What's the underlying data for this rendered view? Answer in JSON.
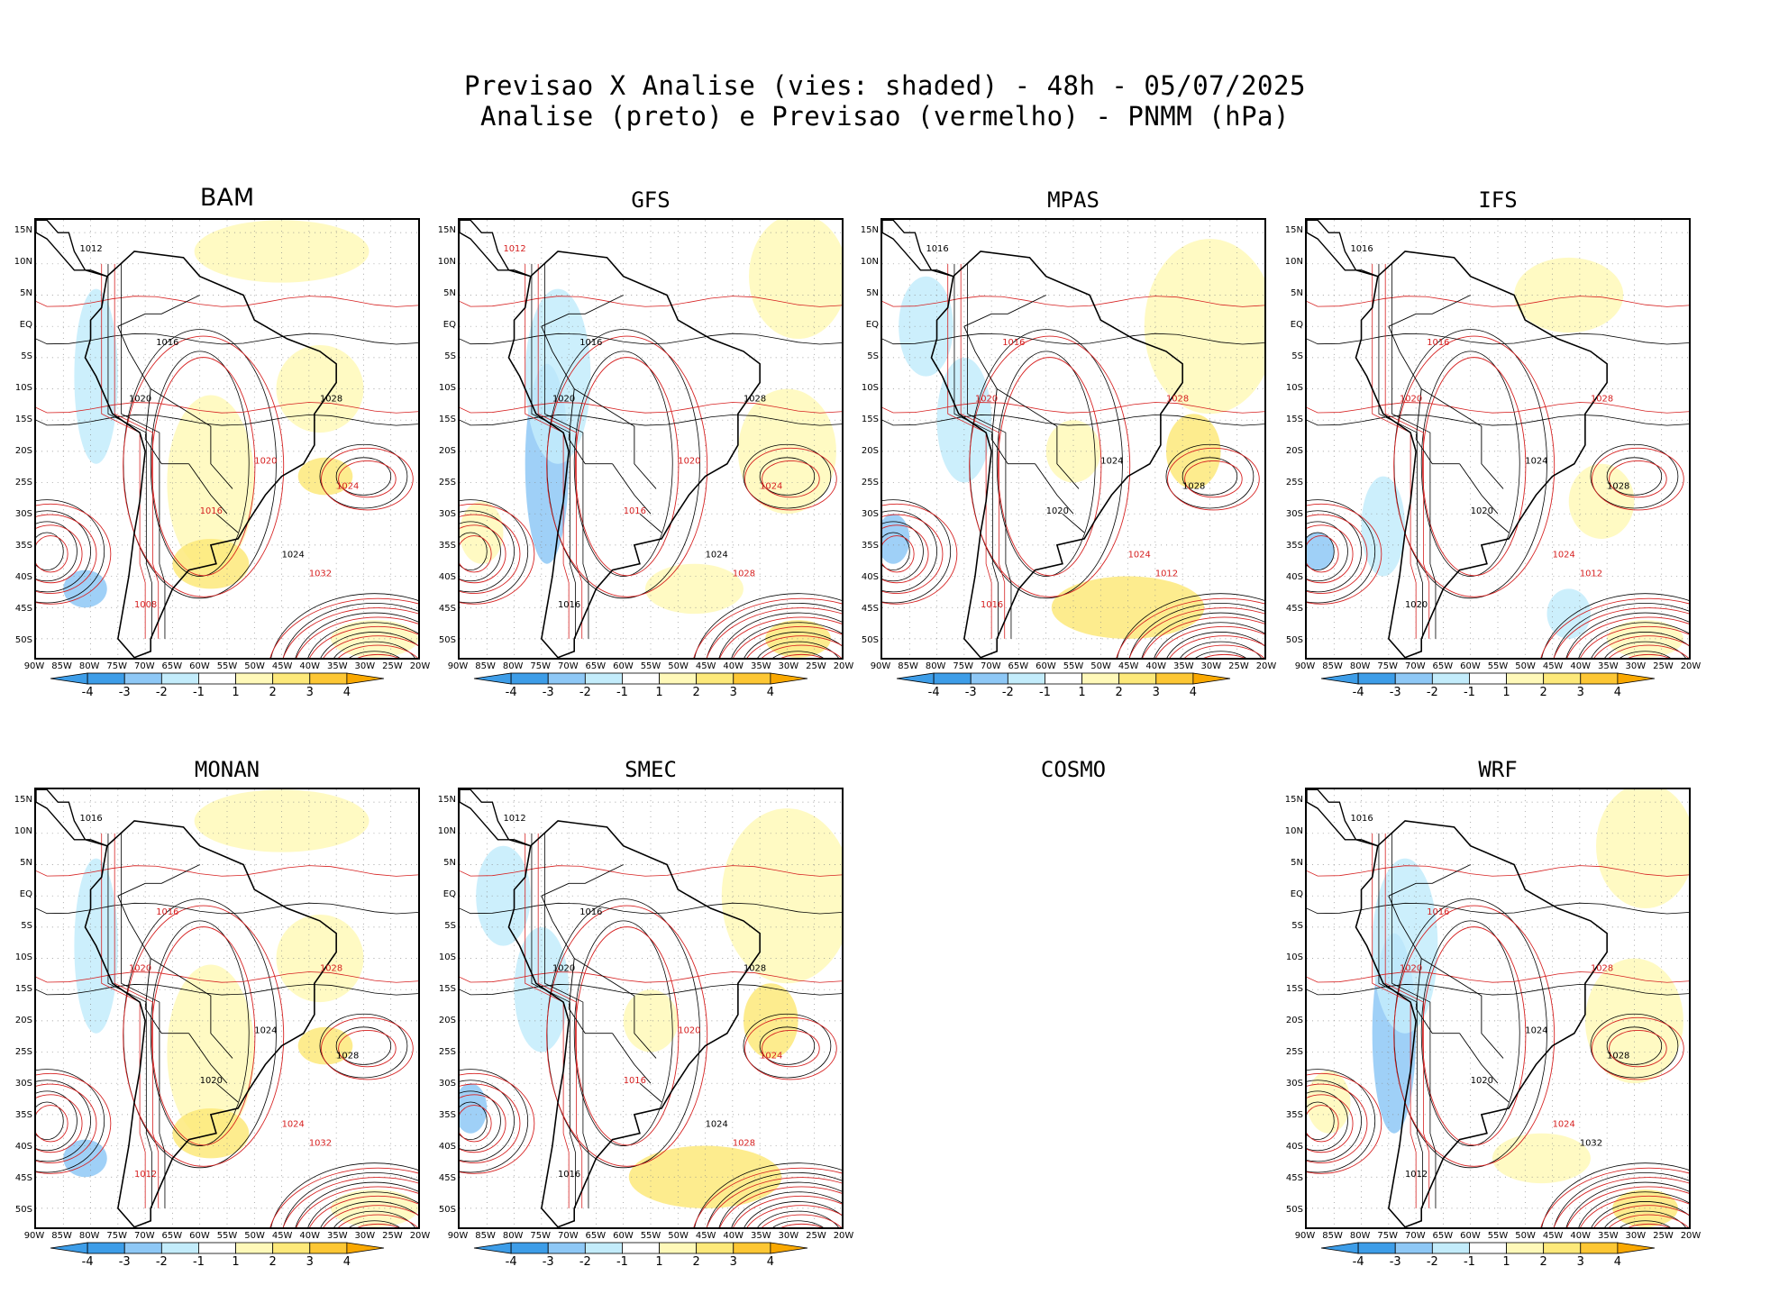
{
  "header": {
    "title_line1": "Previsao X Analise (vies: shaded) - 48h - 05/07/2025",
    "title_line2": "Analise (preto) e Previsao (vermelho) - PNMM (hPa)"
  },
  "lat_labels": [
    "15N",
    "10N",
    "5N",
    "EQ",
    "5S",
    "10S",
    "15S",
    "20S",
    "25S",
    "30S",
    "35S",
    "40S",
    "45S",
    "50S"
  ],
  "lon_labels": [
    "90W",
    "85W",
    "80W",
    "75W",
    "70W",
    "65W",
    "60W",
    "55W",
    "50W",
    "45W",
    "40W",
    "35W",
    "30W",
    "25W",
    "20W"
  ],
  "colorbar": {
    "labels": [
      "-4",
      "-3",
      "-2",
      "-1",
      "1",
      "2",
      "3",
      "4"
    ],
    "colors": [
      "#3d9de8",
      "#8ec8f6",
      "#c3ecfb",
      "#ffffff",
      "#fff9b9",
      "#fde97a",
      "#fdc734"
    ],
    "end_left": "#3d9de8",
    "end_right": "#f9a800"
  },
  "panels": [
    {
      "id": "bam",
      "name": "BAM",
      "has_map": true,
      "bias": "warm",
      "labels": [
        {
          "t": "1012",
          "c": "k"
        },
        {
          "t": "1016",
          "c": "k"
        },
        {
          "t": "1016",
          "c": "r"
        },
        {
          "t": "1020",
          "c": "k"
        },
        {
          "t": "1020",
          "c": "r"
        },
        {
          "t": "1024",
          "c": "k"
        },
        {
          "t": "1024",
          "c": "r"
        },
        {
          "t": "1028",
          "c": "k"
        },
        {
          "t": "1032",
          "c": "r"
        },
        {
          "t": "1008",
          "c": "r"
        }
      ]
    },
    {
      "id": "gfs",
      "name": "GFS",
      "has_map": true,
      "bias": "cool",
      "labels": [
        {
          "t": "1012",
          "c": "r"
        },
        {
          "t": "1016",
          "c": "k"
        },
        {
          "t": "1016",
          "c": "r"
        },
        {
          "t": "1020",
          "c": "k"
        },
        {
          "t": "1020",
          "c": "r"
        },
        {
          "t": "1024",
          "c": "k"
        },
        {
          "t": "1024",
          "c": "r"
        },
        {
          "t": "1028",
          "c": "k"
        },
        {
          "t": "1028",
          "c": "r"
        },
        {
          "t": "1016",
          "c": "k"
        }
      ]
    },
    {
      "id": "mpas",
      "name": "MPAS",
      "has_map": true,
      "bias": "mixed",
      "labels": [
        {
          "t": "1016",
          "c": "k"
        },
        {
          "t": "1016",
          "c": "r"
        },
        {
          "t": "1020",
          "c": "k"
        },
        {
          "t": "1020",
          "c": "r"
        },
        {
          "t": "1024",
          "c": "k"
        },
        {
          "t": "1024",
          "c": "r"
        },
        {
          "t": "1028",
          "c": "k"
        },
        {
          "t": "1028",
          "c": "r"
        },
        {
          "t": "1012",
          "c": "r"
        },
        {
          "t": "1016",
          "c": "r"
        }
      ]
    },
    {
      "id": "ifs",
      "name": "IFS",
      "has_map": true,
      "bias": "light",
      "labels": [
        {
          "t": "1016",
          "c": "k"
        },
        {
          "t": "1016",
          "c": "r"
        },
        {
          "t": "1020",
          "c": "k"
        },
        {
          "t": "1020",
          "c": "r"
        },
        {
          "t": "1024",
          "c": "k"
        },
        {
          "t": "1024",
          "c": "r"
        },
        {
          "t": "1028",
          "c": "k"
        },
        {
          "t": "1028",
          "c": "r"
        },
        {
          "t": "1012",
          "c": "r"
        },
        {
          "t": "1020",
          "c": "k"
        }
      ]
    },
    {
      "id": "monan",
      "name": "MONAN",
      "has_map": true,
      "bias": "warm",
      "labels": [
        {
          "t": "1016",
          "c": "k"
        },
        {
          "t": "1016",
          "c": "r"
        },
        {
          "t": "1020",
          "c": "k"
        },
        {
          "t": "1020",
          "c": "r"
        },
        {
          "t": "1024",
          "c": "k"
        },
        {
          "t": "1024",
          "c": "r"
        },
        {
          "t": "1028",
          "c": "k"
        },
        {
          "t": "1028",
          "c": "r"
        },
        {
          "t": "1032",
          "c": "r"
        },
        {
          "t": "1012",
          "c": "r"
        }
      ]
    },
    {
      "id": "smec",
      "name": "SMEC",
      "has_map": true,
      "bias": "mixed",
      "labels": [
        {
          "t": "1012",
          "c": "k"
        },
        {
          "t": "1016",
          "c": "k"
        },
        {
          "t": "1016",
          "c": "r"
        },
        {
          "t": "1020",
          "c": "k"
        },
        {
          "t": "1020",
          "c": "r"
        },
        {
          "t": "1024",
          "c": "k"
        },
        {
          "t": "1024",
          "c": "r"
        },
        {
          "t": "1028",
          "c": "k"
        },
        {
          "t": "1028",
          "c": "r"
        },
        {
          "t": "1016",
          "c": "k"
        }
      ]
    },
    {
      "id": "cosmo",
      "name": "COSMO",
      "has_map": false
    },
    {
      "id": "wrf",
      "name": "WRF",
      "has_map": true,
      "bias": "cool",
      "labels": [
        {
          "t": "1016",
          "c": "k"
        },
        {
          "t": "1016",
          "c": "r"
        },
        {
          "t": "1020",
          "c": "k"
        },
        {
          "t": "1020",
          "c": "r"
        },
        {
          "t": "1024",
          "c": "k"
        },
        {
          "t": "1024",
          "c": "r"
        },
        {
          "t": "1028",
          "c": "k"
        },
        {
          "t": "1028",
          "c": "r"
        },
        {
          "t": "1032",
          "c": "k"
        },
        {
          "t": "1012",
          "c": "k"
        }
      ]
    }
  ]
}
